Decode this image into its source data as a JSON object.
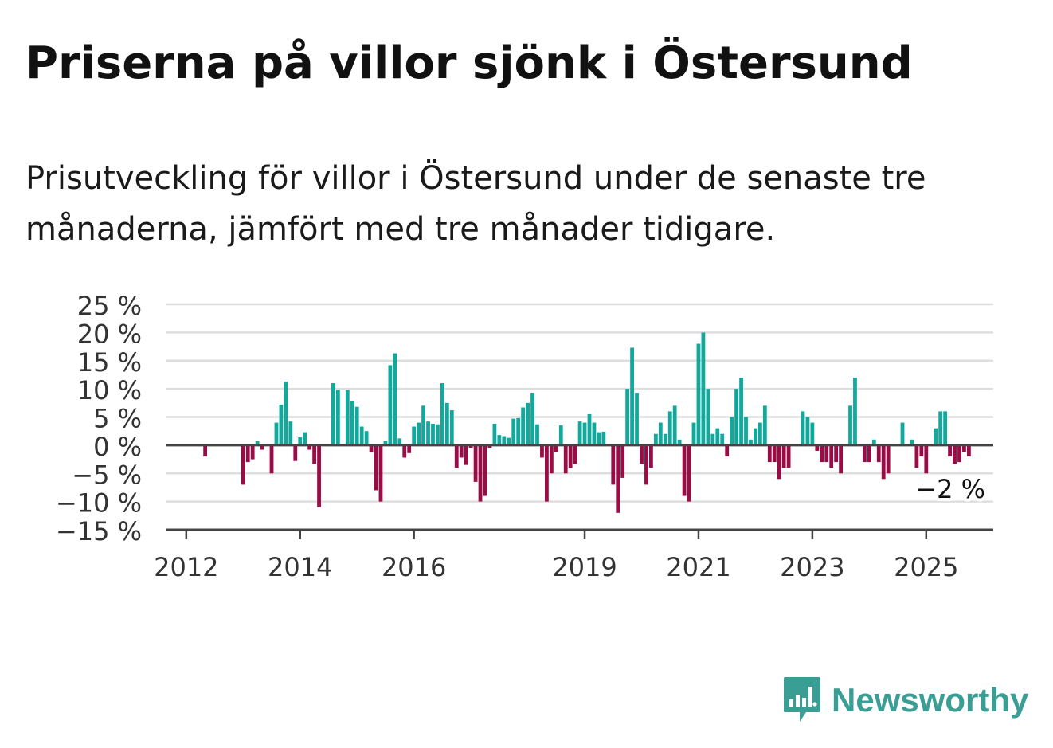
{
  "header": {
    "title": "Priserna på villor sjönk i Östersund",
    "subtitle": "Prisutveckling för villor i Östersund under de senaste tre månaderna, jämfört med tre månader tidigare."
  },
  "brand": {
    "name": "Newsworthy",
    "icon": "newsworthy-logo-icon",
    "color": "#3a9e94"
  },
  "chart_data": {
    "type": "bar",
    "x_start": "2011-09",
    "x_interval": "month",
    "x_ticks": [
      "2012",
      "2014",
      "2016",
      "2019",
      "2021",
      "2023",
      "2025"
    ],
    "y_ticks": [
      "25 %",
      "20 %",
      "15 %",
      "10 %",
      "5 %",
      "0 %",
      "−5 %",
      "−10 %",
      "−15 %"
    ],
    "ylim": [
      -15,
      25
    ],
    "grid": true,
    "positive_color": "#12a89c",
    "negative_color": "#990c45",
    "highlight_color": "#0ca698",
    "last_value_label": "−2 %",
    "values": [
      null,
      null,
      null,
      null,
      null,
      null,
      null,
      null,
      -2,
      null,
      null,
      null,
      null,
      null,
      null,
      null,
      -7,
      -3,
      -2.5,
      0.7,
      -0.8,
      null,
      -5,
      4,
      7.2,
      11.3,
      4.2,
      -2.8,
      1.4,
      2.3,
      -0.8,
      -3.3,
      -11,
      null,
      null,
      11,
      9.8,
      null,
      9.8,
      7.8,
      6.8,
      3.3,
      2.5,
      -1.3,
      -8,
      -10,
      0.8,
      14.2,
      16.3,
      1.2,
      -2.2,
      -1.4,
      3.3,
      4,
      7,
      4.2,
      3.8,
      3.7,
      11,
      7.5,
      6.2,
      -4,
      -2.2,
      -3.5,
      -0.5,
      -6.5,
      -10,
      -9,
      -0.5,
      3.8,
      1.8,
      1.6,
      1.3,
      4.7,
      4.8,
      6.7,
      7.5,
      9.3,
      3.7,
      -2.2,
      -10,
      -5,
      -1.2,
      3.5,
      -5,
      -4,
      -3.3,
      4.2,
      4,
      5.5,
      4,
      2.3,
      2.4,
      null,
      -7,
      -12,
      -5.8,
      10,
      17.3,
      9.3,
      -3.3,
      -7,
      -4,
      2,
      4,
      2,
      6,
      7,
      1,
      -9,
      -10,
      4,
      18,
      20,
      10,
      2,
      3,
      2,
      -2,
      5,
      10,
      12,
      5,
      1,
      3,
      4,
      7,
      -3,
      -3,
      -6,
      -4,
      -4,
      null,
      null,
      6,
      5,
      4,
      -1,
      -3,
      -3,
      -4,
      -3,
      -5,
      null,
      7,
      12,
      null,
      -3,
      -3,
      1,
      -3,
      -6,
      -5,
      null,
      null,
      4,
      null,
      1,
      -4,
      -2,
      -5,
      null,
      3,
      6,
      6,
      -2,
      -3.3,
      -3,
      -1.2,
      -2
    ]
  }
}
